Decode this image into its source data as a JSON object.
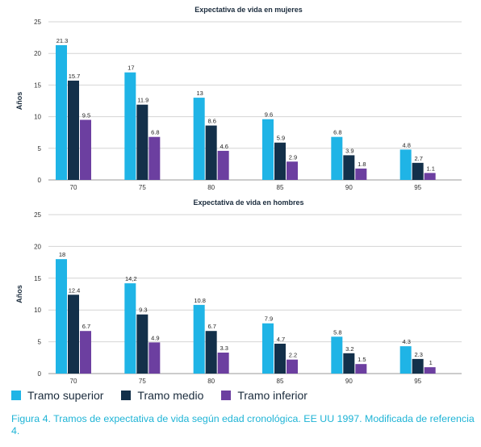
{
  "colors": {
    "superior": "#1fb4e6",
    "medio": "#13304a",
    "inferior": "#6c3fa0",
    "grid": "#d4d4d4",
    "axis_text": "#333333",
    "caption": "#1fb4d6"
  },
  "chart_data": [
    {
      "type": "bar",
      "title": "Expectativa de vida en mujeres",
      "ylabel": "Años",
      "xlabel": "",
      "ylim": [
        0,
        25
      ],
      "yticks": [
        0,
        5,
        10,
        15,
        20,
        25
      ],
      "grid": true,
      "categories": [
        "70",
        "75",
        "80",
        "85",
        "90",
        "95"
      ],
      "series": [
        {
          "name": "Tramo superior",
          "values": [
            21.3,
            17,
            13,
            9.6,
            6.8,
            4.8
          ],
          "labels": [
            "21.3",
            "17",
            "13",
            "9.6",
            "6.8",
            "4.8"
          ]
        },
        {
          "name": "Tramo medio",
          "values": [
            15.7,
            11.9,
            8.6,
            5.9,
            3.9,
            2.7
          ],
          "labels": [
            "15.7",
            "11.9",
            "8.6",
            "5.9",
            "3.9",
            "2.7"
          ]
        },
        {
          "name": "Tramo inferior",
          "values": [
            9.5,
            6.8,
            4.6,
            2.9,
            1.8,
            1.1
          ],
          "labels": [
            "9.5",
            "6.8",
            "4.6",
            "2.9",
            "1.8",
            "1.1"
          ]
        }
      ]
    },
    {
      "type": "bar",
      "title": "Expectativa de vida en hombres",
      "ylabel": "Años",
      "xlabel": "",
      "ylim": [
        0,
        25
      ],
      "yticks": [
        0,
        5,
        10,
        15,
        20,
        25
      ],
      "grid": true,
      "categories": [
        "70",
        "75",
        "80",
        "85",
        "90",
        "95"
      ],
      "series": [
        {
          "name": "Tramo superior",
          "values": [
            18,
            14.2,
            10.8,
            7.9,
            5.8,
            4.3
          ],
          "labels": [
            "18",
            "14,2",
            "10.8",
            "7.9",
            "5.8",
            "4.3"
          ]
        },
        {
          "name": "Tramo medio",
          "values": [
            12.4,
            9.3,
            6.7,
            4.7,
            3.2,
            2.3
          ],
          "labels": [
            "12.4",
            "9.3",
            "6.7",
            "4.7",
            "3.2",
            "2.3"
          ]
        },
        {
          "name": "Tramo inferior",
          "values": [
            6.7,
            4.9,
            3.3,
            2.2,
            1.5,
            1
          ],
          "labels": [
            "6.7",
            "4.9",
            "3.3",
            "2.2",
            "1.5",
            "1"
          ]
        }
      ]
    }
  ],
  "legend": {
    "items": [
      {
        "label": "Tramo superior",
        "color_key": "superior"
      },
      {
        "label": "Tramo medio",
        "color_key": "medio"
      },
      {
        "label": "Tramo inferior",
        "color_key": "inferior"
      }
    ]
  },
  "caption": "Figura 4. Tramos de expectativa de vida según edad cronológica. EE UU 1997. Modificada de referencia 4."
}
